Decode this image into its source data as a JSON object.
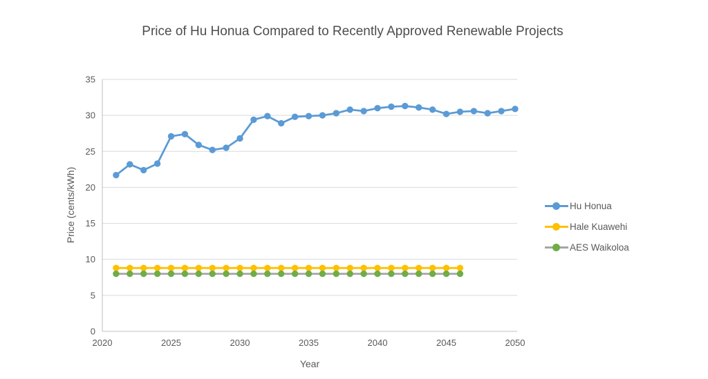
{
  "colors": {
    "gridline": "#D9D9D9",
    "axis_line": "#BFBFBF",
    "text": "#595959",
    "title_text": "#4D4D4D"
  },
  "chart_data": {
    "type": "line",
    "title": "Price of Hu Honua Compared to Recently Approved Renewable Projects",
    "xlabel": "Year",
    "ylabel": "Price (cents/kWh)",
    "xlim": [
      2020,
      2050
    ],
    "ylim": [
      0,
      35
    ],
    "x_ticks": [
      2020,
      2025,
      2030,
      2035,
      2040,
      2045,
      2050
    ],
    "y_ticks": [
      0,
      5,
      10,
      15,
      20,
      25,
      30,
      35
    ],
    "grid": "horizontal",
    "legend_position": "right",
    "series": [
      {
        "name": "Hu Honua",
        "line_color": "#5B9BD5",
        "marker_color": "#5B9BD5",
        "x": [
          2021,
          2022,
          2023,
          2024,
          2025,
          2026,
          2027,
          2028,
          2029,
          2030,
          2031,
          2032,
          2033,
          2034,
          2035,
          2036,
          2037,
          2038,
          2039,
          2040,
          2041,
          2042,
          2043,
          2044,
          2045,
          2046,
          2047,
          2048,
          2049,
          2050
        ],
        "values": [
          21.7,
          23.2,
          22.4,
          23.3,
          27.1,
          27.4,
          25.9,
          25.2,
          25.5,
          26.8,
          29.4,
          29.9,
          28.9,
          29.8,
          29.9,
          30.0,
          30.3,
          30.8,
          30.6,
          31.0,
          31.2,
          31.3,
          31.1,
          30.8,
          30.2,
          30.5,
          30.6,
          30.3,
          30.6,
          30.9
        ]
      },
      {
        "name": "Hale Kuawehi",
        "line_color": "#FFC000",
        "marker_color": "#FFC000",
        "x": [
          2021,
          2022,
          2023,
          2024,
          2025,
          2026,
          2027,
          2028,
          2029,
          2030,
          2031,
          2032,
          2033,
          2034,
          2035,
          2036,
          2037,
          2038,
          2039,
          2040,
          2041,
          2042,
          2043,
          2044,
          2045,
          2046
        ],
        "values": [
          8.8,
          8.8,
          8.8,
          8.8,
          8.8,
          8.8,
          8.8,
          8.8,
          8.8,
          8.8,
          8.8,
          8.8,
          8.8,
          8.8,
          8.8,
          8.8,
          8.8,
          8.8,
          8.8,
          8.8,
          8.8,
          8.8,
          8.8,
          8.8,
          8.8,
          8.8
        ]
      },
      {
        "name": "AES Waikoloa",
        "line_color": "#A5A5A5",
        "marker_color": "#70AD47",
        "x": [
          2021,
          2022,
          2023,
          2024,
          2025,
          2026,
          2027,
          2028,
          2029,
          2030,
          2031,
          2032,
          2033,
          2034,
          2035,
          2036,
          2037,
          2038,
          2039,
          2040,
          2041,
          2042,
          2043,
          2044,
          2045,
          2046
        ],
        "values": [
          8.0,
          8.0,
          8.0,
          8.0,
          8.0,
          8.0,
          8.0,
          8.0,
          8.0,
          8.0,
          8.0,
          8.0,
          8.0,
          8.0,
          8.0,
          8.0,
          8.0,
          8.0,
          8.0,
          8.0,
          8.0,
          8.0,
          8.0,
          8.0,
          8.0,
          8.0
        ]
      }
    ]
  }
}
